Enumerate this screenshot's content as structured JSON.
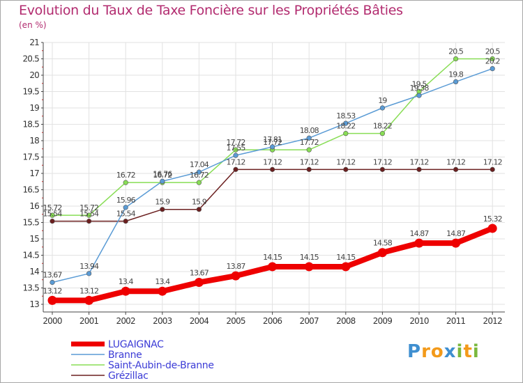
{
  "chart_data": {
    "type": "line",
    "title": "Evolution du Taux de Taxe Foncière sur les Propriétés Bâties",
    "unit_label": "(en %)",
    "xlabel": "",
    "ylabel": "(en %)",
    "ylim": [
      13,
      21
    ],
    "yticks": [
      "13",
      "13.5",
      "14",
      "14.5",
      "15",
      "15.5",
      "16",
      "16.5",
      "17",
      "17.5",
      "18",
      "18.5",
      "19",
      "19.5",
      "20",
      "20.5",
      "21"
    ],
    "categories": [
      "2000",
      "2001",
      "2002",
      "2003",
      "2004",
      "2005",
      "2006",
      "2007",
      "2008",
      "2009",
      "2010",
      "2011",
      "2012"
    ],
    "series": [
      {
        "name": "Grézillac",
        "color": "#6b1f1f",
        "values": [
          15.54,
          15.54,
          15.54,
          15.9,
          15.9,
          17.12,
          17.12,
          17.12,
          17.12,
          17.12,
          17.12,
          17.12,
          17.12
        ]
      },
      {
        "name": "Saint-Aubin-de-Branne",
        "color": "#88dd55",
        "values": [
          15.72,
          15.72,
          16.72,
          16.72,
          16.72,
          17.72,
          17.72,
          17.72,
          18.22,
          18.22,
          19.5,
          20.5,
          20.5
        ]
      },
      {
        "name": "Branne",
        "color": "#5a9bd5",
        "values": [
          13.67,
          13.94,
          15.96,
          16.76,
          17.04,
          17.55,
          17.81,
          18.08,
          18.53,
          19.0,
          19.38,
          19.8,
          20.2
        ]
      },
      {
        "name": "LUGAIGNAC",
        "color": "#ee0000",
        "values": [
          13.12,
          13.12,
          13.4,
          13.4,
          13.67,
          13.87,
          14.15,
          14.15,
          14.15,
          14.58,
          14.87,
          14.87,
          15.32
        ]
      }
    ],
    "labels": [
      [
        "15.54",
        "15.54",
        "15.54",
        "15.9",
        "15.9",
        "17.12",
        "17.12",
        "17.12",
        "17.12",
        "17.12",
        "17.12",
        "17.12",
        "17.12"
      ],
      [
        "15.72",
        "15.72",
        "16.72",
        "16.72",
        "16.72",
        "17.72",
        "17.72",
        "17.72",
        "18.22",
        "18.22",
        "19.5",
        "20.5",
        "20.5"
      ],
      [
        "13.67",
        "13.94",
        "15.96",
        "16.76",
        "17.04",
        "17.55",
        "17.81",
        "18.08",
        "18.53",
        "19",
        "19.38",
        "19.8",
        "20.2"
      ],
      [
        "13.12",
        "13.12",
        "13.4",
        "13.4",
        "13.67",
        "13.87",
        "14.15",
        "14.15",
        "14.15",
        "14.58",
        "14.87",
        "14.87",
        "15.32"
      ]
    ],
    "legend": [
      "LUGAIGNAC",
      "Branne",
      "Saint-Aubin-de-Branne",
      "Grézillac"
    ],
    "legend_colors": [
      "#ee0000",
      "#5a9bd5",
      "#88dd55",
      "#6b1f1f"
    ],
    "legend_position": "bottom-left"
  },
  "brand": {
    "letters": [
      "P",
      "r",
      "o",
      "x",
      "i",
      "t",
      "i"
    ],
    "colors": [
      "#3f8fd0",
      "#f39a1a",
      "#f39a1a",
      "#3f8fd0",
      "#7ab83e",
      "#f39a1a",
      "#7ab83e"
    ]
  }
}
